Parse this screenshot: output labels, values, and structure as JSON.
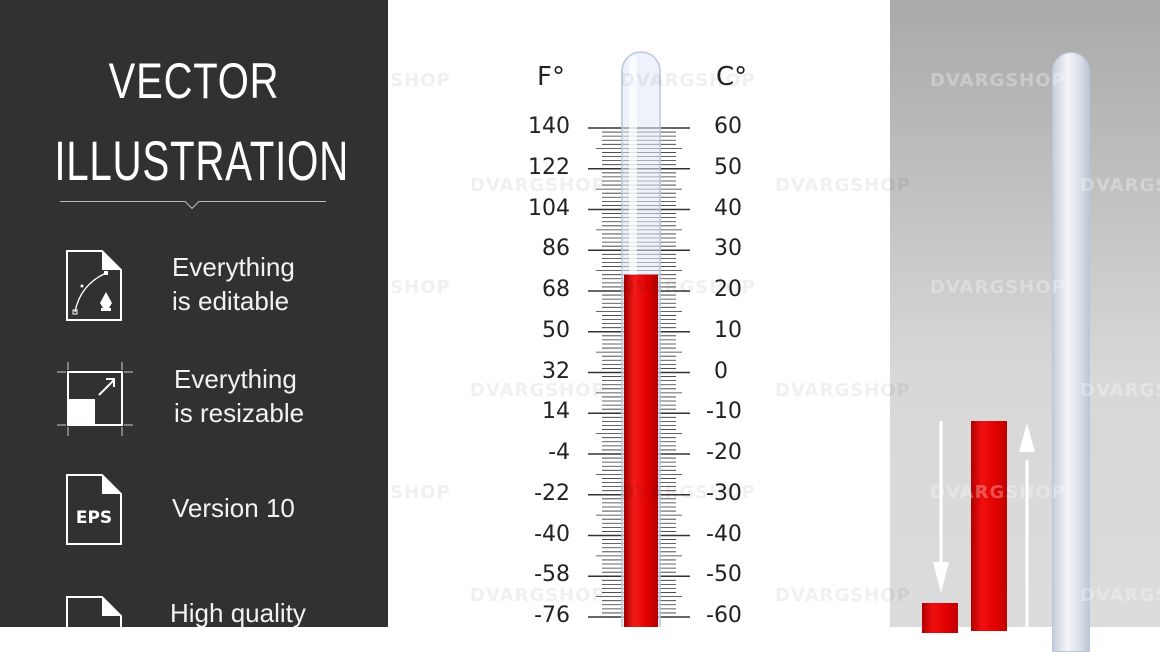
{
  "promo": {
    "title_line1": "VECTOR",
    "title_line2": "ILLUSTRATION",
    "features": [
      {
        "icon": "pen-tool-file-icon",
        "line1": "Everything",
        "line2": "is editable"
      },
      {
        "icon": "resize-icon",
        "line1": "Everything",
        "line2": "is resizable"
      },
      {
        "icon": "eps-file-icon",
        "line1": "Version 10",
        "line2": "",
        "badge": "EPS"
      },
      {
        "icon": "file-icon",
        "line1": "High quality",
        "line2": ""
      }
    ]
  },
  "thermometer": {
    "fahrenheit_unit": "F°",
    "celsius_unit": "C°",
    "fahrenheit_labels": [
      "140",
      "122",
      "104",
      "86",
      "68",
      "50",
      "32",
      "14",
      "-4",
      "-22",
      "-40",
      "-58",
      "-76"
    ],
    "celsius_labels": [
      "60",
      "50",
      "40",
      "30",
      "20",
      "10",
      "0",
      "-10",
      "-20",
      "-30",
      "-40",
      "-50",
      "-60"
    ],
    "current_celsius": 24,
    "liquid_color": "#e00000"
  },
  "watermark": "DVARGSHOP",
  "colors": {
    "panel": "#333130",
    "accent_red": "#e00000"
  }
}
